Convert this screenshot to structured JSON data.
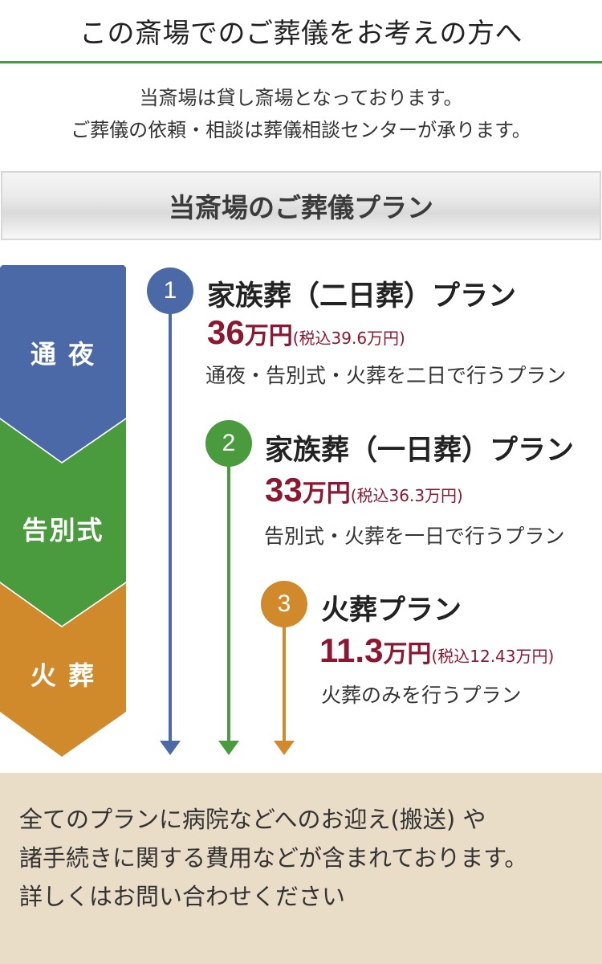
{
  "header": {
    "title": "この斎場でのご葬儀をお考えの方へ",
    "rule_color": "#4a9a3e"
  },
  "intro": {
    "line1": "当斎場は貸し斎場となっております。",
    "line2": "ご葬儀の依頼・相談は葬儀相談センターが承ります。"
  },
  "plan_heading": "当斎場のご葬儀プラン",
  "steps": [
    {
      "label": "通 夜",
      "color": "#4a69a6"
    },
    {
      "label": "告別式",
      "color": "#4a9a3e"
    },
    {
      "label": "火 葬",
      "color": "#d08a2c"
    }
  ],
  "plans": [
    {
      "number": "1",
      "title": "家族葬（二日葬）プラン",
      "price": "36",
      "unit": "万円",
      "tax": "(税込39.6万円)",
      "description": "通夜・告別式・火葬を二日で行うプラン",
      "color": "#4a69a6"
    },
    {
      "number": "2",
      "title": "家族葬（一日葬）プラン",
      "price": "33",
      "unit": "万円",
      "tax": "(税込36.3万円)",
      "description": "告別式・火葬を一日で行うプラン",
      "color": "#4a9a3e"
    },
    {
      "number": "3",
      "title": "火葬プラン",
      "price": "11.3",
      "unit": "万円",
      "tax": "(税込12.43万円)",
      "description": "火葬のみを行うプラン",
      "color": "#d08a2c"
    }
  ],
  "price_color": "#8b1830",
  "footer": {
    "line1": "全てのプランに病院などへのお迎え(搬送) や",
    "line2": "諸手続きに関する費用などが含まれております。",
    "line3": "詳しくはお問い合わせください",
    "background": "#eaddc8"
  }
}
